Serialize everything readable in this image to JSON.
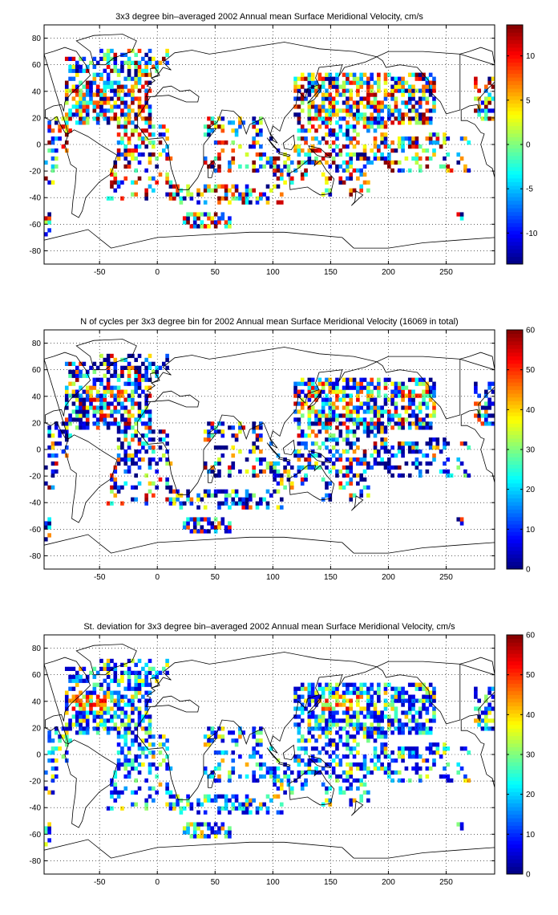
{
  "chart_data": [
    {
      "type": "heatmap",
      "title": "3x3 degree bin–averaged 2002 Annual mean Surface Meridional Velocity, cm/s",
      "xlabel": "",
      "ylabel": "",
      "xlim": [
        -98,
        292
      ],
      "ylim": [
        -90,
        90
      ],
      "xticks": [
        "-50",
        "0",
        "50",
        "100",
        "150",
        "200",
        "250"
      ],
      "xtick_values": [
        -50,
        0,
        50,
        100,
        150,
        200,
        250
      ],
      "yticks": [
        "80",
        "60",
        "40",
        "20",
        "0",
        "-20",
        "-40",
        "-60",
        "-80"
      ],
      "ytick_values": [
        80,
        60,
        40,
        20,
        0,
        -20,
        -40,
        -60,
        -80
      ],
      "grid": true,
      "colorbar": {
        "colormap": "jet",
        "clim": [
          -13.5,
          13.5
        ],
        "ticks": [
          "10",
          "5",
          "0",
          "-5",
          "-10"
        ],
        "tick_values": [
          10,
          5,
          0,
          -5,
          -10
        ]
      },
      "cell_size_deg": 3
    },
    {
      "type": "heatmap",
      "title": "N of cycles per 3x3 degree bin for 2002 Annual mean Surface Meridional Velocity (16069 in total)",
      "xlabel": "",
      "ylabel": "",
      "xlim": [
        -98,
        292
      ],
      "ylim": [
        -90,
        90
      ],
      "xticks": [
        "-50",
        "0",
        "50",
        "100",
        "150",
        "200",
        "250"
      ],
      "xtick_values": [
        -50,
        0,
        50,
        100,
        150,
        200,
        250
      ],
      "yticks": [
        "80",
        "60",
        "40",
        "20",
        "0",
        "-20",
        "-40",
        "-60",
        "-80"
      ],
      "ytick_values": [
        80,
        60,
        40,
        20,
        0,
        -20,
        -40,
        -60,
        -80
      ],
      "grid": true,
      "colorbar": {
        "colormap": "jet",
        "clim": [
          0,
          60
        ],
        "ticks": [
          "60",
          "50",
          "40",
          "30",
          "20",
          "10",
          "0"
        ],
        "tick_values": [
          60,
          50,
          40,
          30,
          20,
          10,
          0
        ]
      },
      "cell_size_deg": 3
    },
    {
      "type": "heatmap",
      "title": "St. deviation for 3x3 degree bin–averaged 2002 Annual mean Surface Meridional Velocity, cm/s",
      "xlabel": "",
      "ylabel": "",
      "xlim": [
        -98,
        292
      ],
      "ylim": [
        -90,
        90
      ],
      "xticks": [
        "-50",
        "0",
        "50",
        "100",
        "150",
        "200",
        "250"
      ],
      "xtick_values": [
        -50,
        0,
        50,
        100,
        150,
        200,
        250
      ],
      "yticks": [
        "80",
        "60",
        "40",
        "20",
        "0",
        "-20",
        "-40",
        "-60",
        "-80"
      ],
      "ytick_values": [
        80,
        60,
        40,
        20,
        0,
        -20,
        -40,
        -60,
        -80
      ],
      "grid": true,
      "colorbar": {
        "colormap": "jet",
        "clim": [
          0,
          60
        ],
        "ticks": [
          "60",
          "50",
          "40",
          "30",
          "20",
          "10",
          "0"
        ],
        "tick_values": [
          60,
          50,
          40,
          30,
          20,
          10,
          0
        ]
      },
      "cell_size_deg": 3
    }
  ]
}
